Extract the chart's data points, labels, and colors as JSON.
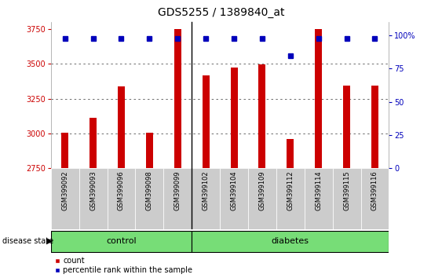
{
  "title": "GDS5255 / 1389840_at",
  "samples": [
    "GSM399092",
    "GSM399093",
    "GSM399096",
    "GSM399098",
    "GSM399099",
    "GSM399102",
    "GSM399104",
    "GSM399109",
    "GSM399112",
    "GSM399114",
    "GSM399115",
    "GSM399116"
  ],
  "counts": [
    3007,
    3115,
    3340,
    3008,
    3750,
    3415,
    3475,
    3495,
    2960,
    3750,
    3345,
    3345
  ],
  "percentiles": [
    98,
    98,
    98,
    98,
    98,
    98,
    98,
    98,
    85,
    98,
    98,
    98
  ],
  "n_control": 5,
  "n_diabetes": 7,
  "bar_color": "#CC0000",
  "percentile_color": "#0000BB",
  "ylim": [
    2750,
    3800
  ],
  "yticks": [
    2750,
    3000,
    3250,
    3500,
    3750
  ],
  "right_yticks": [
    0,
    25,
    50,
    75,
    100
  ],
  "ylabel_color": "#CC0000",
  "ylabel2_color": "#0000BB",
  "plot_bg": "#FFFFFF",
  "cell_bg": "#CCCCCC",
  "group_bg": "#77DD77",
  "legend_count_label": "count",
  "legend_percentile_label": "percentile rank within the sample",
  "disease_state_label": "disease state",
  "control_label": "control",
  "diabetes_label": "diabetes",
  "title_fontsize": 10,
  "tick_fontsize": 7,
  "label_fontsize": 7.5,
  "group_fontsize": 8
}
